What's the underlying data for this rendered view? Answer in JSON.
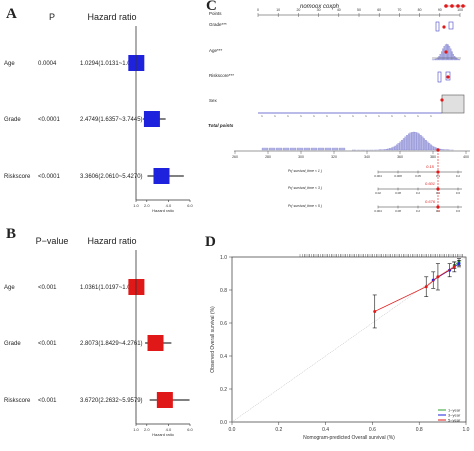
{
  "panels": {
    "A": "A",
    "B": "B",
    "C": "C",
    "D": "D"
  },
  "chart_data": [
    {
      "panel": "A",
      "type": "forest",
      "p_header": "P",
      "hr_header": "Hazard ratio",
      "rows": [
        {
          "label": "Age",
          "p": "0.0004",
          "hr_text": "1.0294(1.0131~1.0460)",
          "hr": 1.0294,
          "lo": 1.0131,
          "hi": 1.046
        },
        {
          "label": "Grade",
          "p": "<0.0001",
          "hr_text": "2.4749(1.6357~3.7445)",
          "hr": 2.4749,
          "lo": 1.6357,
          "hi": 3.7445
        },
        {
          "label": "Riskscore",
          "p": "<0.0001",
          "hr_text": "3.3606(2.0610~5.4270)",
          "hr": 3.3606,
          "lo": 2.061,
          "hi": 5.427
        }
      ],
      "xlim": [
        1,
        6
      ],
      "ticks": [
        "1.0",
        "2.0",
        "4.0",
        "6.0"
      ],
      "xlabel": "Hazard ratio",
      "marker_color": "#1f22dd"
    },
    {
      "panel": "B",
      "type": "forest",
      "p_header": "P−value",
      "hr_header": "Hazard ratio",
      "rows": [
        {
          "label": "Age",
          "p": "<0.001",
          "hr_text": "1.0361(1.0197~1.0527)",
          "hr": 1.0361,
          "lo": 1.0197,
          "hi": 1.0527
        },
        {
          "label": "Grade",
          "p": "<0.001",
          "hr_text": "2.8073(1.8429~4.2761)",
          "hr": 2.8073,
          "lo": 1.8429,
          "hi": 4.2761
        },
        {
          "label": "Riskscore",
          "p": "<0.001",
          "hr_text": "3.6720(2.2632~5.9579)",
          "hr": 3.672,
          "lo": 2.2632,
          "hi": 5.9579
        }
      ],
      "xlim": [
        1,
        6
      ],
      "ticks": [
        "1.0",
        "2.0",
        "4.0",
        "6.0"
      ],
      "xlabel": "Hazard ratio",
      "marker_color": "#e01818"
    },
    {
      "panel": "C",
      "type": "nomogram",
      "title": "nomoox coxph",
      "points_label": "Points",
      "points_ticks": [
        "0",
        "10",
        "20",
        "30",
        "40",
        "50",
        "60",
        "70",
        "80",
        "90",
        "100"
      ],
      "variables": [
        "Grade***",
        "Age***",
        "Riskscore***",
        "Sex"
      ],
      "total_label": "Total points",
      "total_ticks": [
        "260",
        "280",
        "300",
        "320",
        "340",
        "360",
        "380",
        "400"
      ],
      "survival_rows": [
        {
          "label": "Pr( survival_time < 1 )",
          "value": "0.15",
          "ticks": [
            "0.004",
            "0.008",
            "0.05",
            "0.1",
            "0.2"
          ]
        },
        {
          "label": "Pr( survival_time < 3 )",
          "value": "0.601",
          "ticks": [
            "0.02",
            "0.08",
            "0.2",
            "0.4",
            "0.6"
          ]
        },
        {
          "label": "Pr( survival_time < 5 )",
          "value": "0.676",
          "ticks": [
            "0.004",
            "0.08",
            "0.2",
            "0.4",
            "0.6"
          ]
        }
      ]
    },
    {
      "panel": "D",
      "type": "calibration",
      "xlabel": "Nomogram-predicted Overall survival (%)",
      "ylabel": "Observed Overall survival (%)",
      "xlim": [
        0,
        1
      ],
      "ylim": [
        0,
        1
      ],
      "ticks": [
        "0.0",
        "0.2",
        "0.4",
        "0.6",
        "0.8",
        "1.0"
      ],
      "series": [
        {
          "name": "1−year",
          "color": "#2ca02c",
          "x": [
            0.95,
            0.97
          ],
          "y": [
            0.95,
            0.97
          ],
          "err": [
            0.02,
            0.02
          ]
        },
        {
          "name": "3−year",
          "color": "#1f22dd",
          "x": [
            0.86,
            0.93,
            0.97
          ],
          "y": [
            0.86,
            0.92,
            0.96
          ],
          "err": [
            0.05,
            0.04,
            0.02
          ]
        },
        {
          "name": "5−year",
          "color": "#e01818",
          "x": [
            0.61,
            0.83,
            0.88,
            0.95
          ],
          "y": [
            0.67,
            0.82,
            0.88,
            0.94
          ],
          "err": [
            0.1,
            0.06,
            0.08,
            0.03
          ]
        }
      ]
    }
  ]
}
